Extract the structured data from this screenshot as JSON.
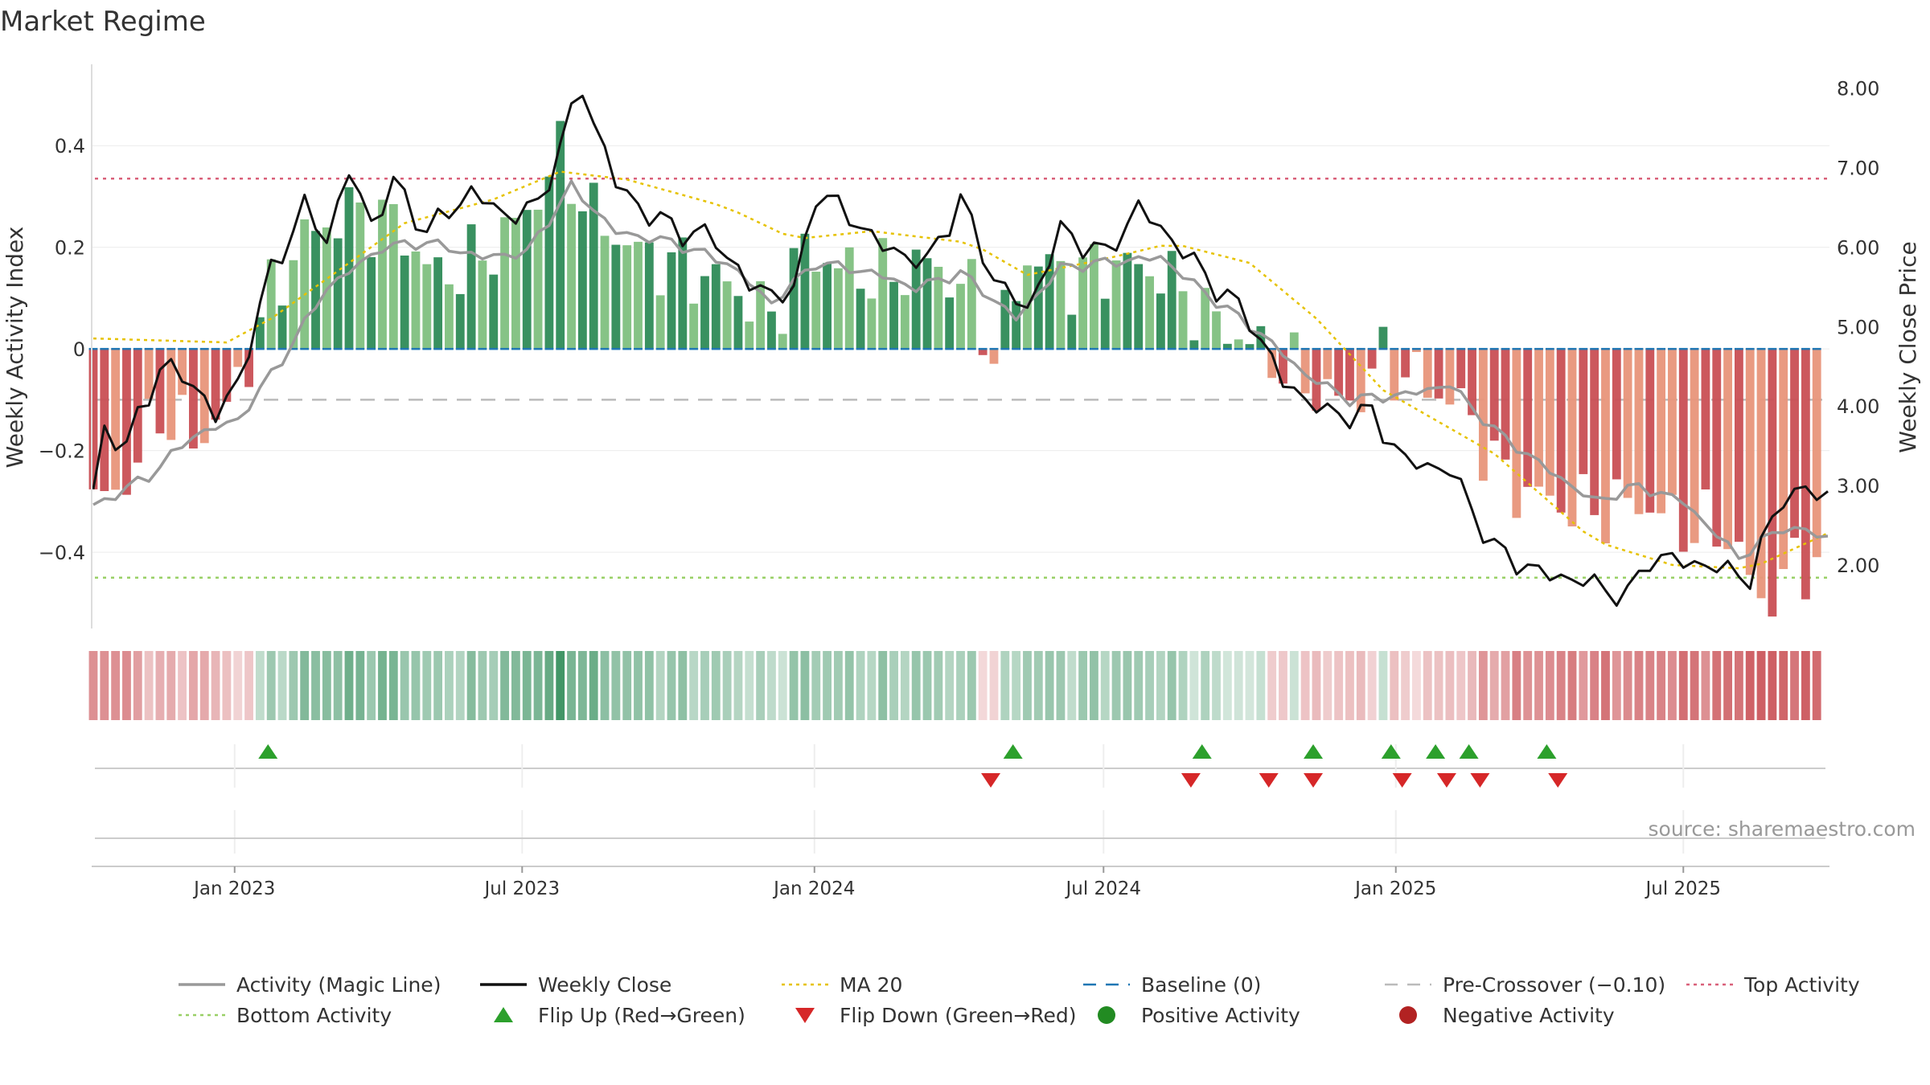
{
  "chart_data": {
    "type": "bar",
    "title": "Market Regime",
    "source": "source: sharemaestro.com",
    "ylabel_left": "Weekly Activity Index",
    "ylabel_right": "Weekly Close Price",
    "y_left": {
      "range": [
        -0.55,
        0.56
      ],
      "ticks": [
        0.4,
        0.2,
        0,
        -0.2,
        -0.4
      ],
      "tick_labels": [
        "0.4",
        "0.2",
        "0",
        "−0.2",
        "−0.4"
      ]
    },
    "y_right": {
      "range": [
        1.2,
        8.3
      ],
      "ticks": [
        8,
        7,
        6,
        5,
        4,
        3,
        2
      ],
      "tick_labels": [
        "8.00",
        "7.00",
        "6.00",
        "5.00",
        "4.00",
        "3.00",
        "2.00"
      ]
    },
    "x_axis": {
      "start": "2022-10-03",
      "end": "2025-10-01",
      "ticks": [
        {
          "date": "2023-01-01",
          "label": "Jan 2023"
        },
        {
          "date": "2023-07-01",
          "label": "Jul 2023"
        },
        {
          "date": "2024-01-01",
          "label": "Jan 2024"
        },
        {
          "date": "2024-07-01",
          "label": "Jul 2024"
        },
        {
          "date": "2025-01-01",
          "label": "Jan 2025"
        },
        {
          "date": "2025-07-01",
          "label": "Jul 2025"
        }
      ]
    },
    "reference_lines": {
      "top_activity": 0.335,
      "bottom_activity": -0.45,
      "pre_crossover": -0.1,
      "baseline": 0
    },
    "colors": {
      "pos_dark": "#2e8b57",
      "pos_light": "#7fc07f",
      "neg_dark": "#c94f54",
      "neg_light": "#e8957a",
      "magic": "#999999",
      "close": "#111111",
      "ma": "#e6c200",
      "baseline": "#1f77b4",
      "pre": "#bbbbbb",
      "top": "#d9607a",
      "bottom": "#99d066",
      "flip_up": "#2ca02c",
      "flip_down": "#d62728",
      "pos_dot": "#228b22",
      "neg_dot": "#b22222"
    },
    "flip_up_dates": [
      "2023-01-22",
      "2024-05-05",
      "2024-09-01",
      "2024-11-10",
      "2024-12-29",
      "2025-01-26",
      "2025-02-16",
      "2025-04-06"
    ],
    "flip_down_dates": [
      "2024-04-21",
      "2024-08-25",
      "2024-10-13",
      "2024-11-10",
      "2025-01-05",
      "2025-02-02",
      "2025-02-23",
      "2025-04-13"
    ],
    "activity_anchors": [
      [
        "2022-10-04",
        -0.31
      ],
      [
        "2022-10-25",
        -0.26
      ],
      [
        "2022-11-15",
        -0.12
      ],
      [
        "2022-12-06",
        -0.18
      ],
      [
        "2022-12-27",
        -0.12
      ],
      [
        "2023-01-10",
        -0.01
      ],
      [
        "2023-01-24",
        0.11
      ],
      [
        "2023-02-14",
        0.22
      ],
      [
        "2023-03-14",
        0.27
      ],
      [
        "2023-04-11",
        0.25
      ],
      [
        "2023-05-09",
        0.14
      ],
      [
        "2023-06-06",
        0.18
      ],
      [
        "2023-07-04",
        0.27
      ],
      [
        "2023-07-25",
        0.38
      ],
      [
        "2023-08-15",
        0.26
      ],
      [
        "2023-09-12",
        0.19
      ],
      [
        "2023-10-10",
        0.16
      ],
      [
        "2023-11-07",
        0.13
      ],
      [
        "2023-12-05",
        0.06
      ],
      [
        "2023-12-26",
        0.2
      ],
      [
        "2024-01-16",
        0.16
      ],
      [
        "2024-02-13",
        0.14
      ],
      [
        "2024-03-12",
        0.17
      ],
      [
        "2024-04-09",
        0.11
      ],
      [
        "2024-04-23",
        -0.01
      ],
      [
        "2024-05-14",
        0.18
      ],
      [
        "2024-06-11",
        0.14
      ],
      [
        "2024-07-09",
        0.17
      ],
      [
        "2024-08-06",
        0.15
      ],
      [
        "2024-09-03",
        0.07
      ],
      [
        "2024-10-01",
        0.01
      ],
      [
        "2024-10-22",
        -0.03
      ],
      [
        "2024-11-12",
        -0.08
      ],
      [
        "2024-12-03",
        -0.11
      ],
      [
        "2024-12-24",
        -0.02
      ],
      [
        "2025-01-14",
        -0.06
      ],
      [
        "2025-02-11",
        -0.11
      ],
      [
        "2025-03-11",
        -0.26
      ],
      [
        "2025-04-08",
        -0.3
      ],
      [
        "2025-05-06",
        -0.32
      ],
      [
        "2025-06-03",
        -0.3
      ],
      [
        "2025-07-01",
        -0.35
      ],
      [
        "2025-07-29",
        -0.36
      ],
      [
        "2025-08-19",
        -0.5
      ],
      [
        "2025-09-09",
        -0.43
      ],
      [
        "2025-09-30",
        -0.4
      ]
    ],
    "magic_anchors": [
      [
        "2022-10-04",
        -0.31
      ],
      [
        "2022-11-08",
        -0.25
      ],
      [
        "2022-12-06",
        -0.17
      ],
      [
        "2023-01-03",
        -0.14
      ],
      [
        "2023-01-31",
        -0.02
      ],
      [
        "2023-02-28",
        0.12
      ],
      [
        "2023-04-04",
        0.2
      ],
      [
        "2023-05-02",
        0.21
      ],
      [
        "2023-06-06",
        0.18
      ],
      [
        "2023-07-04",
        0.19
      ],
      [
        "2023-08-01",
        0.32
      ],
      [
        "2023-08-29",
        0.23
      ],
      [
        "2023-10-03",
        0.21
      ],
      [
        "2023-11-07",
        0.17
      ],
      [
        "2023-12-05",
        0.09
      ],
      [
        "2024-01-02",
        0.17
      ],
      [
        "2024-02-06",
        0.15
      ],
      [
        "2024-03-05",
        0.12
      ],
      [
        "2024-04-02",
        0.15
      ],
      [
        "2024-05-07",
        0.06
      ],
      [
        "2024-06-04",
        0.16
      ],
      [
        "2024-07-02",
        0.17
      ],
      [
        "2024-08-06",
        0.18
      ],
      [
        "2024-09-03",
        0.11
      ],
      [
        "2024-10-08",
        0.03
      ],
      [
        "2024-11-05",
        -0.05
      ],
      [
        "2024-12-03",
        -0.1
      ],
      [
        "2025-01-07",
        -0.09
      ],
      [
        "2025-02-04",
        -0.07
      ],
      [
        "2025-03-04",
        -0.16
      ],
      [
        "2025-04-08",
        -0.24
      ],
      [
        "2025-05-06",
        -0.3
      ],
      [
        "2025-06-03",
        -0.27
      ],
      [
        "2025-07-01",
        -0.3
      ],
      [
        "2025-08-05",
        -0.41
      ],
      [
        "2025-09-02",
        -0.35
      ],
      [
        "2025-09-30",
        -0.37
      ]
    ],
    "close_anchors": [
      [
        "2022-10-04",
        2.9
      ],
      [
        "2022-10-11",
        3.7
      ],
      [
        "2022-10-25",
        3.5
      ],
      [
        "2022-11-15",
        4.5
      ],
      [
        "2022-12-06",
        4.3
      ],
      [
        "2022-12-20",
        3.85
      ],
      [
        "2023-01-03",
        4.3
      ],
      [
        "2023-01-24",
        5.7
      ],
      [
        "2023-02-14",
        6.5
      ],
      [
        "2023-02-28",
        6.1
      ],
      [
        "2023-03-14",
        6.95
      ],
      [
        "2023-03-28",
        6.3
      ],
      [
        "2023-04-11",
        6.8
      ],
      [
        "2023-05-02",
        6.2
      ],
      [
        "2023-05-30",
        6.7
      ],
      [
        "2023-06-20",
        6.4
      ],
      [
        "2023-07-11",
        6.5
      ],
      [
        "2023-07-25",
        7.3
      ],
      [
        "2023-08-08",
        8.0
      ],
      [
        "2023-08-29",
        6.8
      ],
      [
        "2023-09-19",
        6.4
      ],
      [
        "2023-10-10",
        6.2
      ],
      [
        "2023-10-31",
        6.1
      ],
      [
        "2023-11-21",
        5.5
      ],
      [
        "2023-12-19",
        5.4
      ],
      [
        "2024-01-02",
        6.7
      ],
      [
        "2024-01-23",
        6.4
      ],
      [
        "2024-02-13",
        6.0
      ],
      [
        "2024-03-12",
        5.8
      ],
      [
        "2024-04-02",
        6.6
      ],
      [
        "2024-04-23",
        5.6
      ],
      [
        "2024-05-14",
        5.2
      ],
      [
        "2024-06-04",
        6.2
      ],
      [
        "2024-07-02",
        5.9
      ],
      [
        "2024-07-23",
        6.5
      ],
      [
        "2024-08-13",
        6.1
      ],
      [
        "2024-09-10",
        5.5
      ],
      [
        "2024-10-01",
        5.1
      ],
      [
        "2024-10-22",
        4.3
      ],
      [
        "2024-11-19",
        3.9
      ],
      [
        "2024-12-17",
        3.9
      ],
      [
        "2025-01-07",
        3.3
      ],
      [
        "2025-02-04",
        3.2
      ],
      [
        "2025-03-04",
        2.2
      ],
      [
        "2025-04-01",
        1.9
      ],
      [
        "2025-04-29",
        1.8
      ],
      [
        "2025-05-27",
        1.6
      ],
      [
        "2025-06-10",
        2.1
      ],
      [
        "2025-07-15",
        2.0
      ],
      [
        "2025-08-12",
        1.85
      ],
      [
        "2025-09-02",
        2.9
      ],
      [
        "2025-09-30",
        2.9
      ]
    ],
    "ma_anchors": [
      [
        "2022-10-04",
        4.85
      ],
      [
        "2022-12-27",
        4.8
      ],
      [
        "2023-01-24",
        5.1
      ],
      [
        "2023-03-07",
        5.7
      ],
      [
        "2023-04-18",
        6.3
      ],
      [
        "2023-06-13",
        6.6
      ],
      [
        "2023-07-25",
        6.95
      ],
      [
        "2023-09-05",
        6.85
      ],
      [
        "2023-11-07",
        6.5
      ],
      [
        "2023-12-19",
        6.1
      ],
      [
        "2024-02-06",
        6.2
      ],
      [
        "2024-04-09",
        6.05
      ],
      [
        "2024-05-14",
        5.65
      ],
      [
        "2024-07-02",
        5.85
      ],
      [
        "2024-08-13",
        6.05
      ],
      [
        "2024-10-01",
        5.8
      ],
      [
        "2024-11-12",
        5.1
      ],
      [
        "2024-12-24",
        4.2
      ],
      [
        "2025-03-04",
        3.4
      ],
      [
        "2025-05-06",
        2.3
      ],
      [
        "2025-06-24",
        2.0
      ],
      [
        "2025-08-12",
        1.95
      ],
      [
        "2025-09-30",
        2.4
      ]
    ]
  },
  "legend": {
    "items": [
      {
        "label": "Activity (Magic Line)",
        "style": "solid",
        "color": "#999999"
      },
      {
        "label": "Weekly Close",
        "style": "solid",
        "color": "#111111"
      },
      {
        "label": "MA 20",
        "style": "dotted",
        "color": "#e6c200"
      },
      {
        "label": "Baseline (0)",
        "style": "dashed",
        "color": "#1f77b4"
      },
      {
        "label": "Pre-Crossover (−0.10)",
        "style": "dashed",
        "color": "#bbbbbb"
      },
      {
        "label": "Top Activity",
        "style": "dotted",
        "color": "#d9607a"
      },
      {
        "label": "Bottom Activity",
        "style": "dotted",
        "color": "#99d066"
      },
      {
        "label": "Flip Up (Red→Green)",
        "style": "tri-up",
        "color": "#2ca02c"
      },
      {
        "label": "Flip Down (Green→Red)",
        "style": "tri-down",
        "color": "#d62728"
      },
      {
        "label": "Positive Activity",
        "style": "dot",
        "color": "#228b22"
      },
      {
        "label": "Negative Activity",
        "style": "dot",
        "color": "#b22222"
      }
    ]
  }
}
